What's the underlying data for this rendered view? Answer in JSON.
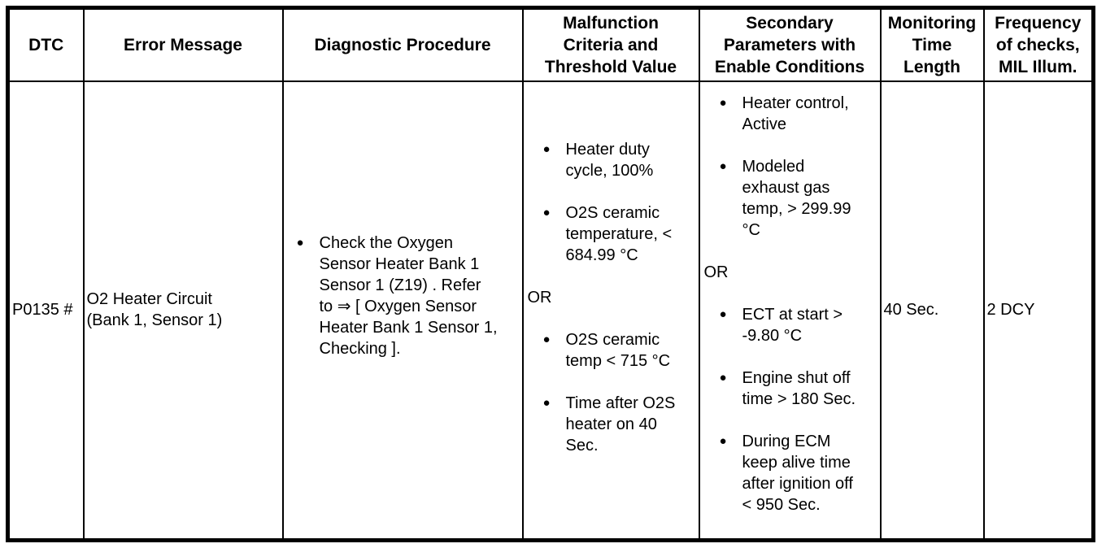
{
  "page": {
    "background_color": "#ffffff",
    "line_color": "#000000",
    "text_color": "#000000"
  },
  "icons": {
    "bullet": "●"
  },
  "table": {
    "headers": [
      "DTC",
      "Error Message",
      "Diagnostic Procedure",
      "Malfunction\nCriteria and\nThreshold Value",
      "Secondary\nParameters with\nEnable Conditions",
      "Monitoring\nTime\nLength",
      "Frequency\nof checks,\nMIL Illum."
    ],
    "row": {
      "dtc": "P0135 #",
      "error_message": "O2 Heater Circuit\n(Bank 1, Sensor 1)",
      "diagnostic_procedure": [
        {
          "type": "bullet",
          "text": "Check the Oxygen\nSensor Heater Bank 1\nSensor 1 (Z19) . Refer\nto ⇒ [ Oxygen Sensor\nHeater Bank 1 Sensor 1,\nChecking ]."
        }
      ],
      "malfunction_criteria": [
        {
          "type": "bullet",
          "text": "Heater duty\ncycle, 100%"
        },
        {
          "type": "bullet",
          "text": "O2S ceramic\ntemperature, <\n684.99 °C"
        },
        {
          "type": "plain",
          "text": "OR"
        },
        {
          "type": "bullet",
          "text": "O2S ceramic\ntemp < 715 °C"
        },
        {
          "type": "bullet",
          "text": "Time after O2S\nheater on 40\nSec."
        }
      ],
      "secondary_parameters": [
        {
          "type": "bullet",
          "text": "Heater control,\nActive"
        },
        {
          "type": "bullet",
          "text": "Modeled\nexhaust gas\ntemp, > 299.99\n°C"
        },
        {
          "type": "plain",
          "text": "OR"
        },
        {
          "type": "bullet",
          "text": "ECT at start >\n-9.80 °C"
        },
        {
          "type": "bullet",
          "text": "Engine shut off\ntime > 180 Sec."
        },
        {
          "type": "bullet",
          "text": "During ECM\nkeep alive time\nafter ignition off\n< 950 Sec."
        }
      ],
      "monitoring_time_length": "40 Sec.",
      "frequency_of_checks": "2 DCY"
    }
  }
}
